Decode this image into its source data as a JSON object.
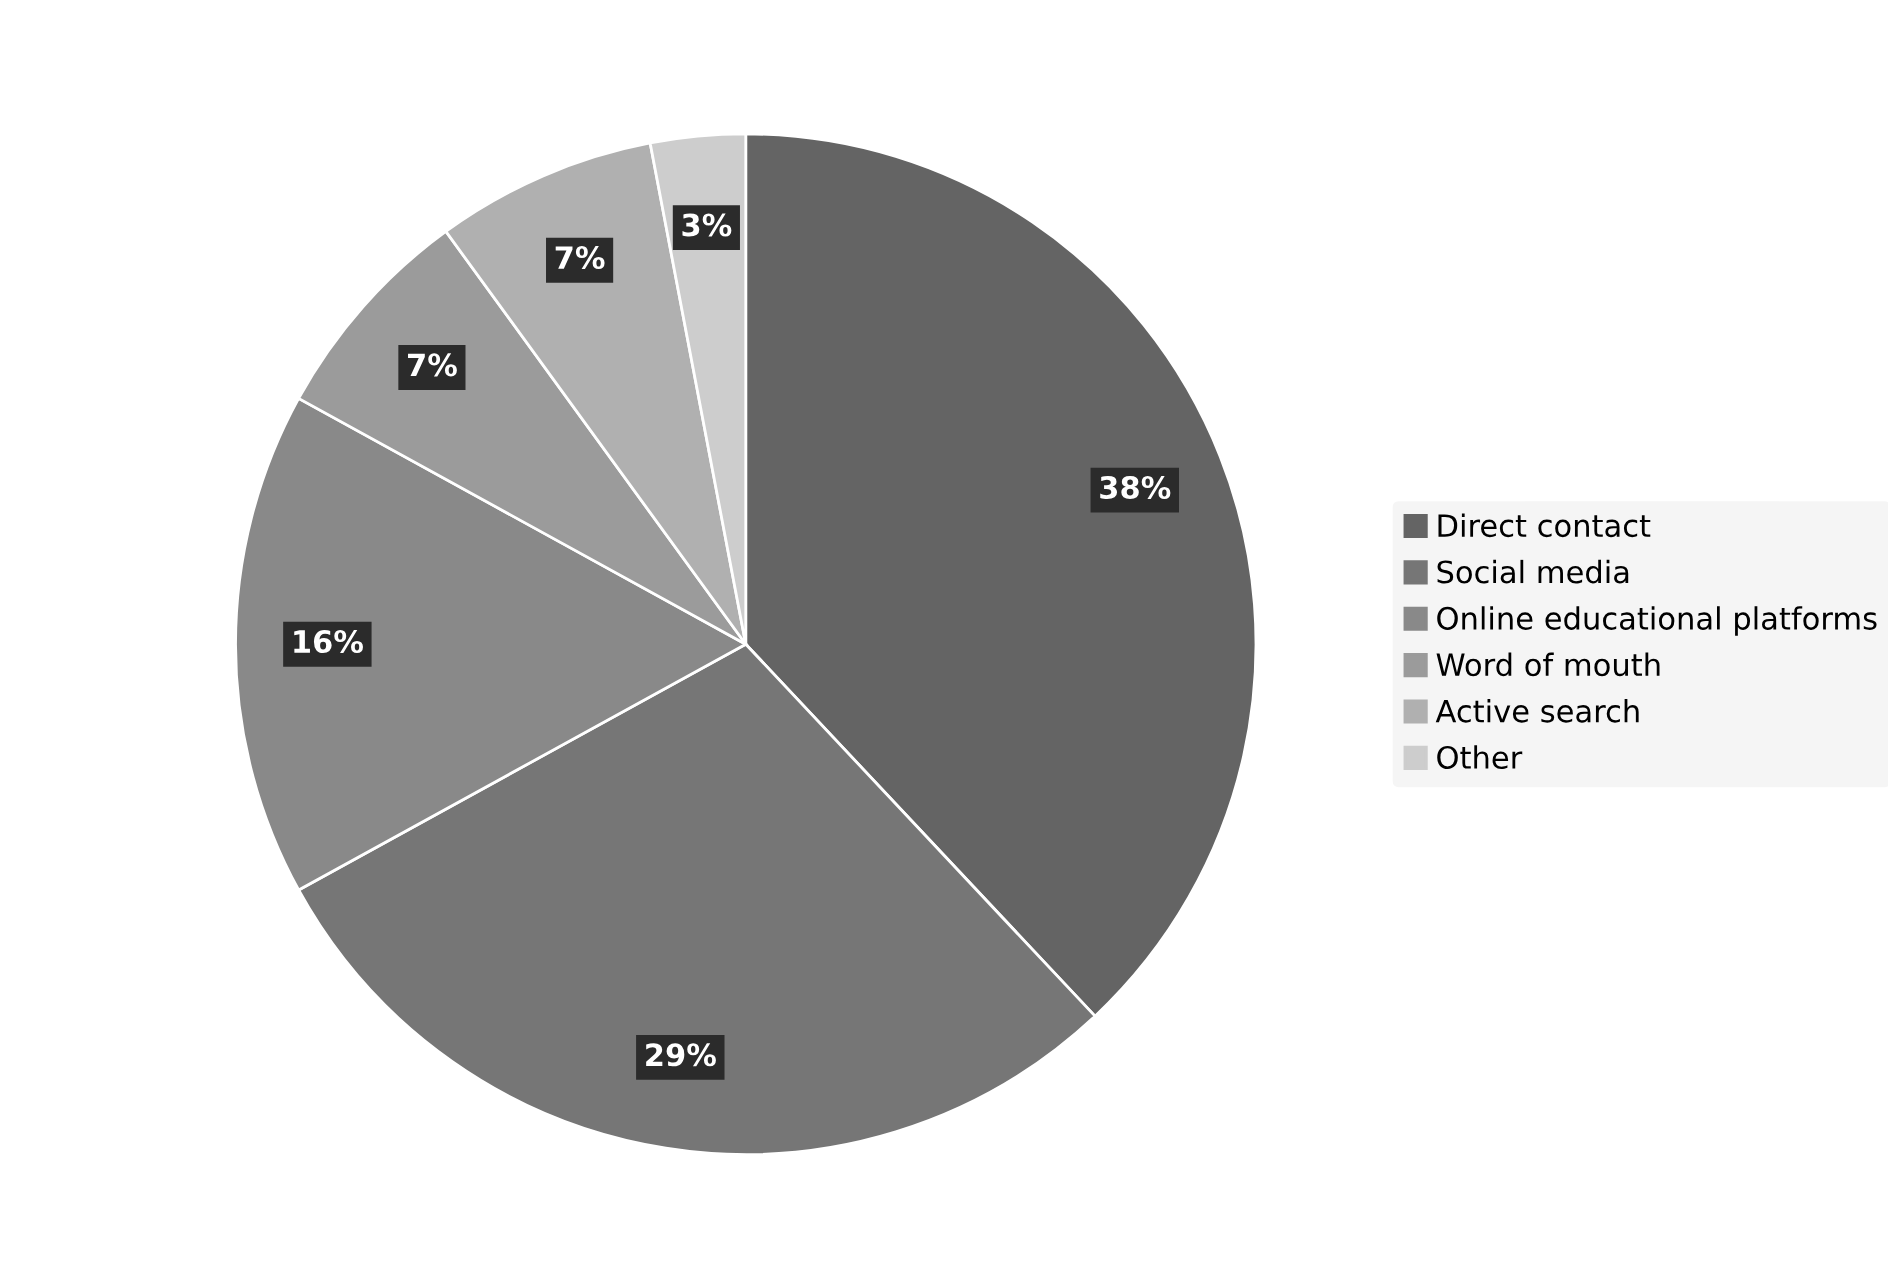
{
  "chart_data": {
    "type": "pie",
    "categories": [
      "Direct contact",
      "Social media",
      "Online educational platforms",
      "Word of mouth",
      "Active search",
      "Other"
    ],
    "values": [
      38,
      29,
      16,
      7,
      7,
      3
    ],
    "colors": [
      "#646464",
      "#767676",
      "#898989",
      "#9b9b9b",
      "#b0b0b0",
      "#cdcdcd"
    ],
    "value_labels": [
      "38%",
      "29%",
      "16%",
      "7%",
      "7%",
      "3%"
    ],
    "legend": "right"
  }
}
